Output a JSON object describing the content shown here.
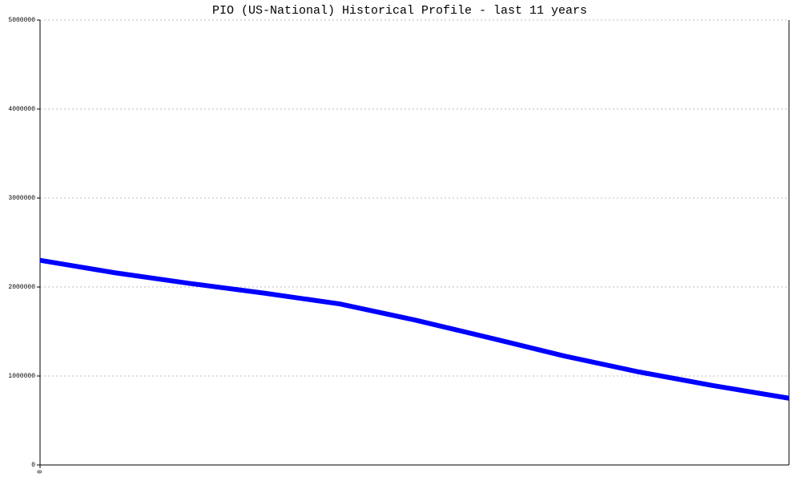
{
  "chart_data": {
    "type": "line",
    "title": "PIO (US-National) Historical Profile - last 11 years",
    "categories": [
      "0",
      null,
      null,
      null,
      null,
      null,
      null,
      null,
      null,
      null,
      null
    ],
    "series": [
      {
        "color": "#0000ff",
        "values": [
          2300000,
          2160000,
          2040000,
          1930000,
          1810000,
          1630000,
          1430000,
          1225000,
          1045000,
          890000,
          750000
        ]
      }
    ],
    "ylim": [
      0,
      5000000
    ],
    "yticks": [
      0,
      1000000,
      2000000,
      3000000,
      4000000,
      5000000
    ],
    "grid": true
  }
}
